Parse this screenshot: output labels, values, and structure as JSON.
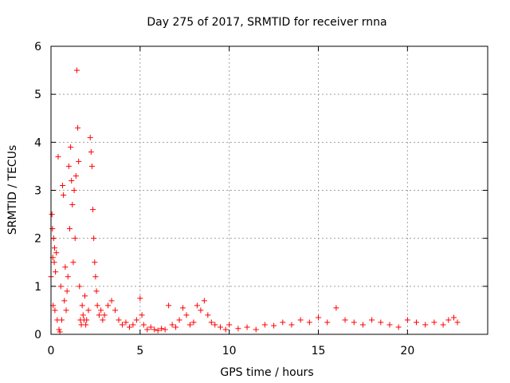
{
  "chart_data": {
    "type": "scatter",
    "title": "Day 275 of 2017, SRMTID for receiver rnna",
    "xlabel": "GPS time / hours",
    "ylabel": "SRMTID / TECUs",
    "xlim": [
      0,
      24.5
    ],
    "ylim": [
      0,
      6
    ],
    "xticks": [
      0,
      5,
      10,
      15,
      20
    ],
    "yticks": [
      0,
      1,
      2,
      3,
      4,
      5,
      6
    ],
    "grid": true,
    "marker": "plus",
    "color": "#ff0000",
    "series": [
      {
        "name": "SRMTID",
        "x": [
          0.0,
          0.05,
          0.08,
          0.1,
          0.12,
          0.15,
          0.18,
          0.2,
          0.22,
          0.25,
          0.3,
          0.35,
          0.4,
          0.45,
          0.5,
          0.55,
          0.6,
          0.65,
          0.7,
          0.75,
          0.8,
          0.85,
          0.9,
          0.95,
          1.0,
          1.05,
          1.1,
          1.15,
          1.2,
          1.25,
          1.3,
          1.35,
          1.4,
          1.45,
          1.5,
          1.55,
          1.6,
          1.65,
          1.7,
          1.75,
          1.8,
          1.85,
          1.9,
          1.95,
          2.0,
          2.1,
          2.2,
          2.25,
          2.3,
          2.35,
          2.4,
          2.45,
          2.5,
          2.55,
          2.6,
          2.7,
          2.8,
          2.9,
          3.0,
          3.2,
          3.4,
          3.6,
          3.8,
          4.0,
          4.2,
          4.4,
          4.6,
          4.8,
          5.0,
          5.1,
          5.2,
          5.4,
          5.6,
          5.8,
          6.0,
          6.2,
          6.4,
          6.6,
          6.8,
          7.0,
          7.2,
          7.4,
          7.6,
          7.8,
          8.0,
          8.2,
          8.4,
          8.6,
          8.8,
          9.0,
          9.2,
          9.5,
          9.8,
          10.0,
          10.5,
          11.0,
          11.5,
          12.0,
          12.5,
          13.0,
          13.5,
          14.0,
          14.5,
          15.0,
          15.5,
          16.0,
          16.5,
          17.0,
          17.5,
          18.0,
          18.5,
          19.0,
          19.5,
          20.0,
          20.5,
          21.0,
          21.5,
          22.0,
          22.3,
          22.6,
          22.8
        ],
        "y": [
          1.2,
          2.5,
          2.2,
          1.6,
          0.6,
          2.0,
          1.5,
          1.8,
          0.5,
          1.3,
          1.7,
          0.3,
          3.7,
          0.1,
          0.05,
          1.0,
          0.3,
          3.1,
          2.9,
          0.7,
          1.4,
          0.5,
          0.9,
          1.2,
          3.5,
          2.2,
          3.9,
          3.2,
          2.7,
          1.5,
          3.0,
          2.0,
          3.3,
          5.5,
          4.3,
          3.6,
          1.0,
          0.3,
          0.2,
          0.6,
          0.4,
          0.3,
          0.8,
          0.2,
          0.3,
          0.5,
          4.1,
          3.8,
          3.5,
          2.6,
          2.0,
          1.5,
          1.2,
          0.9,
          0.6,
          0.4,
          0.5,
          0.3,
          0.4,
          0.6,
          0.7,
          0.5,
          0.3,
          0.2,
          0.25,
          0.15,
          0.2,
          0.3,
          0.75,
          0.4,
          0.2,
          0.1,
          0.15,
          0.1,
          0.08,
          0.12,
          0.1,
          0.6,
          0.2,
          0.15,
          0.3,
          0.55,
          0.4,
          0.2,
          0.25,
          0.6,
          0.5,
          0.7,
          0.4,
          0.25,
          0.2,
          0.15,
          0.1,
          0.2,
          0.12,
          0.15,
          0.1,
          0.2,
          0.18,
          0.25,
          0.2,
          0.3,
          0.25,
          0.35,
          0.25,
          0.55,
          0.3,
          0.25,
          0.2,
          0.3,
          0.25,
          0.2,
          0.15,
          0.3,
          0.25,
          0.2,
          0.25,
          0.2,
          0.3,
          0.35,
          0.25
        ]
      }
    ]
  }
}
